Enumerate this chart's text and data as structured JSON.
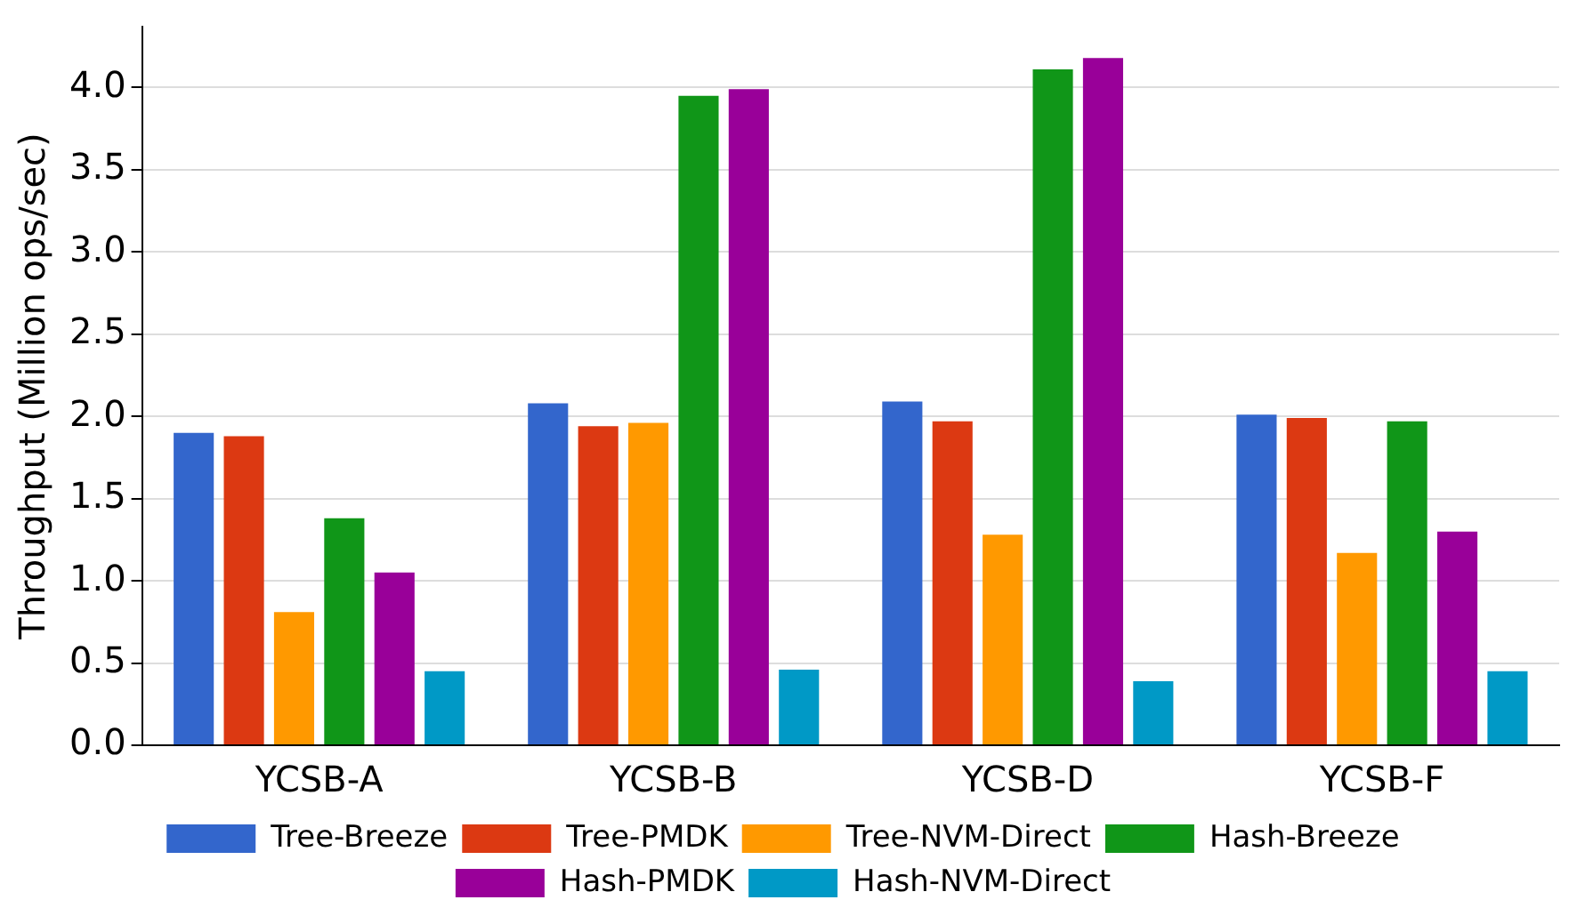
{
  "chart_data": {
    "type": "bar",
    "ylabel": "Throughput (Million ops/sec)",
    "categories": [
      "YCSB-A",
      "YCSB-B",
      "YCSB-D",
      "YCSB-F"
    ],
    "series": [
      {
        "name": "Tree-Breeze",
        "color": "#3366cc",
        "values": [
          1.9,
          2.08,
          2.09,
          2.01
        ]
      },
      {
        "name": "Tree-PMDK",
        "color": "#dc3912",
        "values": [
          1.88,
          1.94,
          1.97,
          1.99
        ]
      },
      {
        "name": "Tree-NVM-Direct",
        "color": "#ff9900",
        "values": [
          0.81,
          1.96,
          1.28,
          1.17
        ]
      },
      {
        "name": "Hash-Breeze",
        "color": "#109618",
        "values": [
          1.38,
          3.95,
          4.11,
          1.97
        ]
      },
      {
        "name": "Hash-PMDK",
        "color": "#990099",
        "values": [
          1.05,
          3.99,
          4.18,
          1.3
        ]
      },
      {
        "name": "Hash-NVM-Direct",
        "color": "#0099c6",
        "values": [
          0.45,
          0.46,
          0.39,
          0.45
        ]
      }
    ],
    "ylim": [
      0,
      4.37
    ],
    "yticks": [
      {
        "value": 0,
        "label": "0.0"
      },
      {
        "value": 0.5,
        "label": "0.5"
      },
      {
        "value": 1,
        "label": "1.0"
      },
      {
        "value": 1.5,
        "label": "1.5"
      },
      {
        "value": 2,
        "label": "2.0"
      },
      {
        "value": 2.5,
        "label": "2.5"
      },
      {
        "value": 3,
        "label": "3.0"
      },
      {
        "value": 3.5,
        "label": "3.5"
      },
      {
        "value": 4,
        "label": "4.0"
      }
    ],
    "grid": "y",
    "legend": "bottom"
  }
}
